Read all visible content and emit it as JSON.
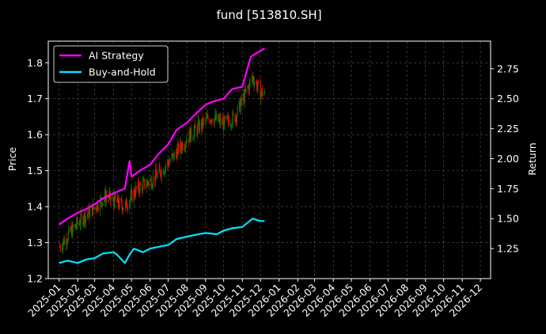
{
  "chart_data": {
    "type": "line",
    "title": "fund [513810.SH]",
    "ylabel_left": "Price",
    "ylabel_right": "Return",
    "ylim_left": [
      1.2,
      1.86
    ],
    "ylim_right": [
      1.0,
      2.98
    ],
    "xlim": [
      "2024-12-14",
      "2026-12-18"
    ],
    "y_ticks_left": [
      "1.2",
      "1.3",
      "1.4",
      "1.5",
      "1.6",
      "1.7",
      "1.8"
    ],
    "y_ticks_right": [
      "1.25",
      "1.50",
      "1.75",
      "2.00",
      "2.25",
      "2.50",
      "2.75"
    ],
    "x_ticks": [
      "2025-01",
      "2025-02",
      "2025-03",
      "2025-04",
      "2025-05",
      "2025-06",
      "2025-07",
      "2025-08",
      "2025-09",
      "2025-10",
      "2025-11",
      "2025-12",
      "2026-01",
      "2026-02",
      "2026-03",
      "2026-04",
      "2026-05",
      "2026-06",
      "2026-07",
      "2026-08",
      "2026-09",
      "2026-10",
      "2026-11",
      "2026-12"
    ],
    "grid": true,
    "legend_position": "top-left",
    "colors": {
      "background": "#000000",
      "strategy": "#ff00ff",
      "buy_hold": "#00e5ff",
      "candle_up": "#008000",
      "candle_down": "#ff0000",
      "grid": "#555555"
    },
    "candlesticks_approx_close": {
      "x": [
        "2025-01-02",
        "2025-01-20",
        "2025-02-10",
        "2025-03-01",
        "2025-03-20",
        "2025-04-07",
        "2025-04-20",
        "2025-05-10",
        "2025-06-01",
        "2025-06-20",
        "2025-07-10",
        "2025-08-01",
        "2025-08-20",
        "2025-09-10",
        "2025-10-01",
        "2025-10-20",
        "2025-11-05",
        "2025-11-18",
        "2025-12-01",
        "2025-12-08"
      ],
      "close": [
        1.29,
        1.33,
        1.37,
        1.4,
        1.43,
        1.41,
        1.4,
        1.45,
        1.47,
        1.5,
        1.54,
        1.59,
        1.62,
        1.65,
        1.63,
        1.65,
        1.71,
        1.76,
        1.72,
        1.71
      ]
    },
    "series": [
      {
        "name": "AI Strategy",
        "axis": "right",
        "x": [
          "2025-01-01",
          "2025-01-15",
          "2025-02-01",
          "2025-02-15",
          "2025-03-01",
          "2025-03-15",
          "2025-04-01",
          "2025-04-10",
          "2025-04-20",
          "2025-04-28",
          "2025-05-01",
          "2025-05-15",
          "2025-06-01",
          "2025-06-15",
          "2025-07-01",
          "2025-07-15",
          "2025-08-01",
          "2025-08-15",
          "2025-09-01",
          "2025-09-15",
          "2025-10-01",
          "2025-10-15",
          "2025-11-01",
          "2025-11-15",
          "2025-12-01",
          "2025-12-08"
        ],
        "values": [
          1.45,
          1.5,
          1.55,
          1.58,
          1.62,
          1.67,
          1.71,
          1.73,
          1.75,
          1.98,
          1.85,
          1.9,
          1.95,
          2.04,
          2.12,
          2.24,
          2.3,
          2.37,
          2.45,
          2.48,
          2.5,
          2.58,
          2.6,
          2.85,
          2.9,
          2.92
        ]
      },
      {
        "name": "Buy-and-Hold",
        "axis": "right",
        "x": [
          "2025-01-01",
          "2025-01-15",
          "2025-02-01",
          "2025-02-15",
          "2025-03-01",
          "2025-03-15",
          "2025-04-01",
          "2025-04-07",
          "2025-04-20",
          "2025-04-28",
          "2025-05-05",
          "2025-05-20",
          "2025-06-01",
          "2025-06-20",
          "2025-07-01",
          "2025-07-15",
          "2025-08-01",
          "2025-08-20",
          "2025-09-01",
          "2025-09-20",
          "2025-10-01",
          "2025-10-15",
          "2025-11-01",
          "2025-11-18",
          "2025-12-01",
          "2025-12-08"
        ],
        "values": [
          1.13,
          1.15,
          1.13,
          1.16,
          1.17,
          1.21,
          1.22,
          1.2,
          1.13,
          1.2,
          1.25,
          1.22,
          1.25,
          1.27,
          1.28,
          1.33,
          1.35,
          1.37,
          1.38,
          1.37,
          1.4,
          1.42,
          1.43,
          1.5,
          1.48,
          1.48
        ]
      }
    ]
  }
}
